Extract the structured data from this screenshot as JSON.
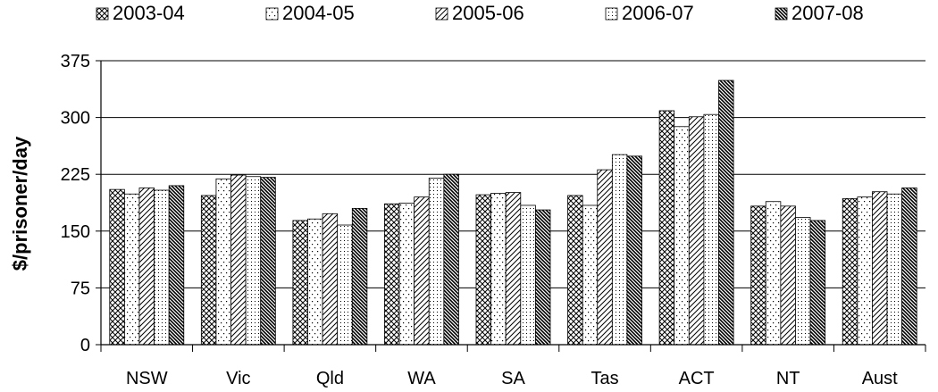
{
  "chart_data": {
    "type": "bar",
    "title": "",
    "xlabel": "",
    "ylabel": "$/prisoner/day",
    "ylim": [
      0,
      375
    ],
    "yticks": [
      0,
      75,
      150,
      225,
      300,
      375
    ],
    "ytick_labels": [
      "0",
      "75",
      "150",
      "225",
      "300",
      "375"
    ],
    "grid": true,
    "legend_position": "top",
    "categories": [
      "NSW",
      "Vic",
      "Qld",
      "WA",
      "SA",
      "Tas",
      "ACT",
      "NT",
      "Aust"
    ],
    "series": [
      {
        "name": "2003-04",
        "pattern": "crosshatch",
        "values": [
          205,
          197,
          164,
          186,
          198,
          197,
          309,
          183,
          193
        ]
      },
      {
        "name": "2004-05",
        "pattern": "sparse-dots",
        "values": [
          199,
          219,
          166,
          187,
          200,
          184,
          288,
          189,
          195
        ]
      },
      {
        "name": "2005-06",
        "pattern": "diagonal",
        "values": [
          207,
          224,
          173,
          195,
          201,
          231,
          301,
          183,
          202
        ]
      },
      {
        "name": "2006-07",
        "pattern": "dots",
        "values": [
          204,
          222,
          158,
          220,
          184,
          251,
          304,
          168,
          199
        ]
      },
      {
        "name": "2007-08",
        "pattern": "dense-diagonal",
        "values": [
          210,
          221,
          180,
          225,
          178,
          249,
          349,
          164,
          207
        ]
      }
    ]
  }
}
